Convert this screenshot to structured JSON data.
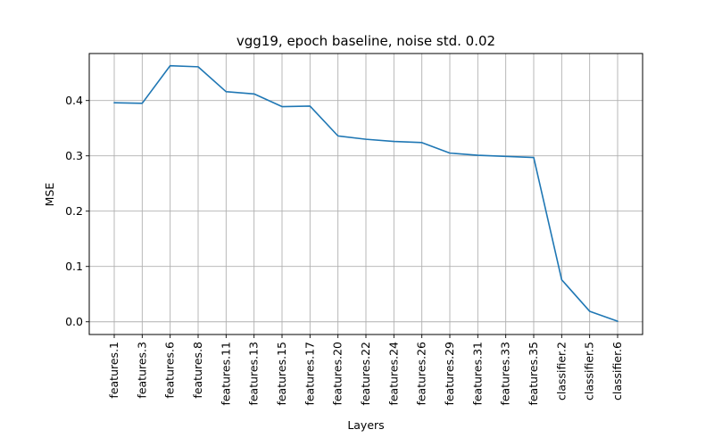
{
  "chart_data": {
    "type": "line",
    "title": "vgg19, epoch baseline, noise std. 0.02",
    "xlabel": "Layers",
    "ylabel": "MSE",
    "categories": [
      "features.1",
      "features.3",
      "features.6",
      "features.8",
      "features.11",
      "features.13",
      "features.15",
      "features.17",
      "features.20",
      "features.22",
      "features.24",
      "features.26",
      "features.29",
      "features.31",
      "features.33",
      "features.35",
      "classifier.2",
      "classifier.5",
      "classifier.6"
    ],
    "series": [
      {
        "values": [
          0.396,
          0.395,
          0.463,
          0.461,
          0.416,
          0.412,
          0.389,
          0.39,
          0.336,
          0.33,
          0.326,
          0.324,
          0.305,
          0.301,
          0.299,
          0.297,
          0.076,
          0.019,
          0.001
        ],
        "color": "#1f77b4"
      }
    ],
    "ylim": [
      -0.023,
      0.485
    ],
    "yticks": [
      0.0,
      0.1,
      0.2,
      0.3,
      0.4
    ],
    "ytick_labels": [
      "0.0",
      "0.1",
      "0.2",
      "0.3",
      "0.4"
    ],
    "grid": true,
    "legend": false
  }
}
